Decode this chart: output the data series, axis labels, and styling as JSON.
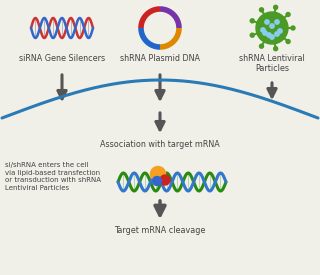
{
  "bg_color": "#f0efe8",
  "arrow_color": "#555555",
  "curve_color": "#2a7ab5",
  "label_siRNA": "siRNA Gene Silencers",
  "label_shRNA_plasmid": "shRNA Plasmid DNA",
  "label_shRNA_lenti": "shRNA Lentiviral\nParticles",
  "label_assoc": "Association with target mRNA",
  "label_cleave": "Target mRNA cleavage",
  "label_side": "si/shRNA enters the cell\nvia lipid-based transfection\nor transduction with shRNA\nLentiviral Particles",
  "font_size_label": 5.8,
  "font_size_side": 5.0,
  "dna_red": "#cc3333",
  "dna_blue": "#3366cc",
  "plasmid_colors": [
    "#7733aa",
    "#dd8800",
    "#2266cc",
    "#cc2222"
  ],
  "lenti_green": "#4a9a25",
  "lenti_dot": "#88ccee",
  "mrna_green": "#2a8a10",
  "mrna_blue": "#3377cc",
  "complex_orange": "#f5a020",
  "complex_red": "#cc2222",
  "complex_blue": "#3366cc"
}
